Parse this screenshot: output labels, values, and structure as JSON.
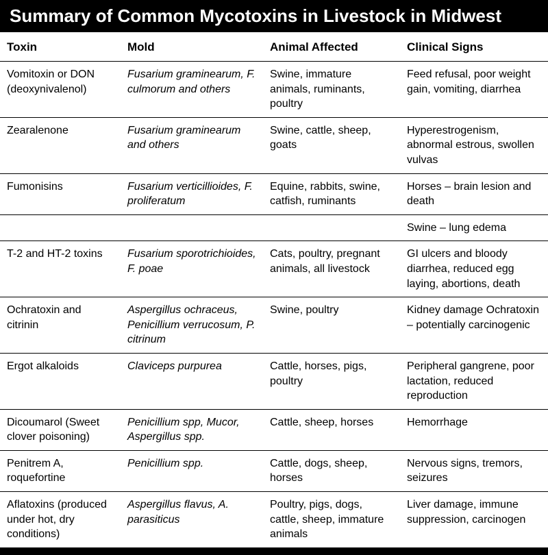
{
  "title": "Summary of Common Mycotoxins in Livestock in Midwest",
  "columns": [
    "Toxin",
    "Mold",
    "Animal Affected",
    "Clinical Signs"
  ],
  "rows": [
    {
      "toxin": "Vomitoxin or DON (deoxynivalenol)",
      "mold_html": "<i>Fusarium graminearum, F. culmorum</i> and others",
      "animal": "Swine, immature animals, ruminants, poultry",
      "signs": "Feed refusal, poor weight gain, vomiting, diarrhea"
    },
    {
      "toxin": "Zearalenone",
      "mold_html": "<i>Fusarium graminearum</i> and others",
      "animal": "Swine, cattle, sheep, goats",
      "signs": "Hyperestrogenism, abnormal estrous, swollen vulvas"
    },
    {
      "toxin": "Fumonisins",
      "mold_html": "<i>Fusarium verticillioides, F. proliferatum</i>",
      "animal": "Equine, rabbits, swine, catfish, ruminants",
      "signs": "Horses – brain lesion and death"
    },
    {
      "toxin": "",
      "mold_html": "",
      "animal": "",
      "signs": "Swine – lung edema"
    },
    {
      "toxin": "T-2 and HT-2 toxins",
      "mold_html": "<i>Fusarium sporotrichioides, F. poae</i>",
      "animal": "Cats, poultry, pregnant animals, all livestock",
      "signs": "GI ulcers and bloody diarrhea, reduced egg laying, abortions, death"
    },
    {
      "toxin": "Ochratoxin and citrinin",
      "mold_html": "<i>Aspergillus ochraceus, Penicillium verrucosum, P. citrinum</i>",
      "animal": "Swine, poultry",
      "signs": "Kidney damage Ochratoxin – potentially carcinogenic"
    },
    {
      "toxin": "Ergot alkaloids",
      "mold_html": "<i>Claviceps purpurea</i>",
      "animal": "Cattle, horses, pigs, poultry",
      "signs": "Peripheral gangrene, poor lactation, reduced reproduction"
    },
    {
      "toxin": "Dicoumarol (Sweet clover poisoning)",
      "mold_html": "<i>Penicillium spp, Mucor, Aspergillus</i> spp.",
      "animal": "Cattle, sheep, horses",
      "signs": "Hemorrhage"
    },
    {
      "toxin": "Penitrem A, roquefortine",
      "mold_html": "<i>Penicillium</i> spp.",
      "animal": "Cattle, dogs, sheep, horses",
      "signs": "Nervous signs, tremors, seizures"
    },
    {
      "toxin": "Aflatoxins (produced under hot, dry conditions)",
      "mold_html": "<i>Aspergillus flavus, A. parasiticus</i>",
      "animal": "Poultry, pigs, dogs, cattle, sheep, immature animals",
      "signs": "Liver damage, immune suppression, carcinogen"
    }
  ],
  "style": {
    "title_bg": "#000000",
    "title_fg": "#ffffff",
    "title_fontsize": 26,
    "header_fontsize": 17,
    "body_fontsize": 16,
    "border_color": "#000000",
    "col_widths_pct": [
      22,
      26,
      25,
      27
    ]
  }
}
